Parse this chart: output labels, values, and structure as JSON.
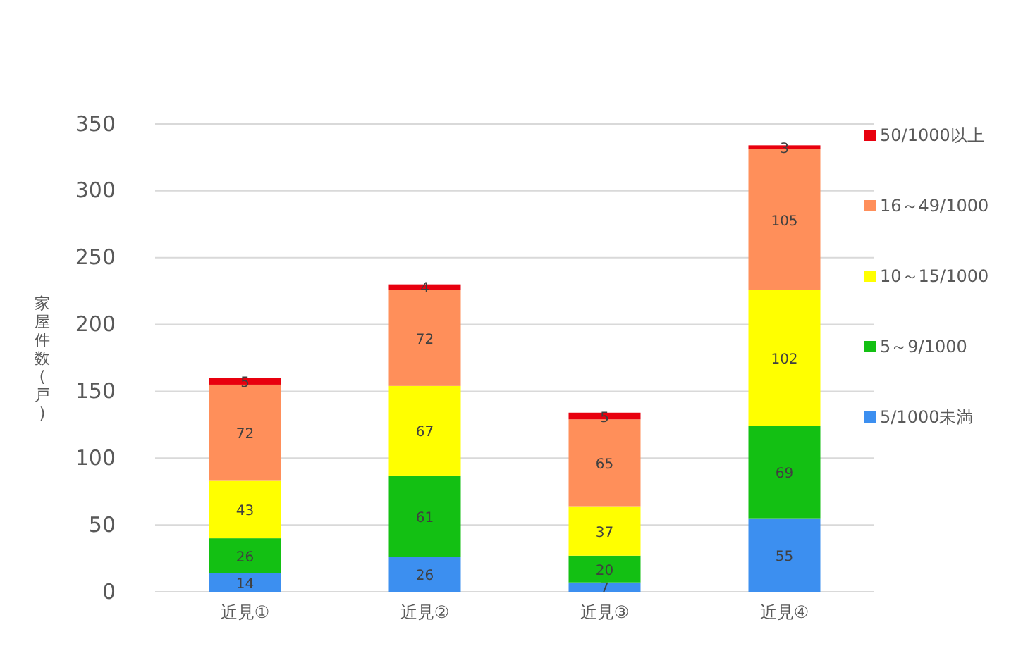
{
  "chart_data": {
    "type": "bar",
    "stacked": true,
    "ylabel": "家屋件数(戸)",
    "categories": [
      "近見①",
      "近見②",
      "近見③",
      "近見④"
    ],
    "series": [
      {
        "name": "5/1000未満",
        "color": "#3c8ff0",
        "values": [
          14,
          26,
          7,
          55
        ]
      },
      {
        "name": "5～9/1000",
        "color": "#13c013",
        "values": [
          26,
          61,
          20,
          69
        ]
      },
      {
        "name": "10～15/1000",
        "color": "#ffff00",
        "values": [
          43,
          67,
          37,
          102
        ]
      },
      {
        "name": "16～49/1000",
        "color": "#ff8f5a",
        "values": [
          72,
          72,
          65,
          105
        ]
      },
      {
        "name": "50/1000以上",
        "color": "#e8000e",
        "values": [
          5,
          4,
          5,
          3
        ]
      }
    ],
    "ylim": [
      0,
      350
    ],
    "yticks": [
      0,
      50,
      100,
      150,
      200,
      250,
      300,
      350
    ],
    "grid": "y",
    "legend": "right",
    "data_labels": true
  }
}
